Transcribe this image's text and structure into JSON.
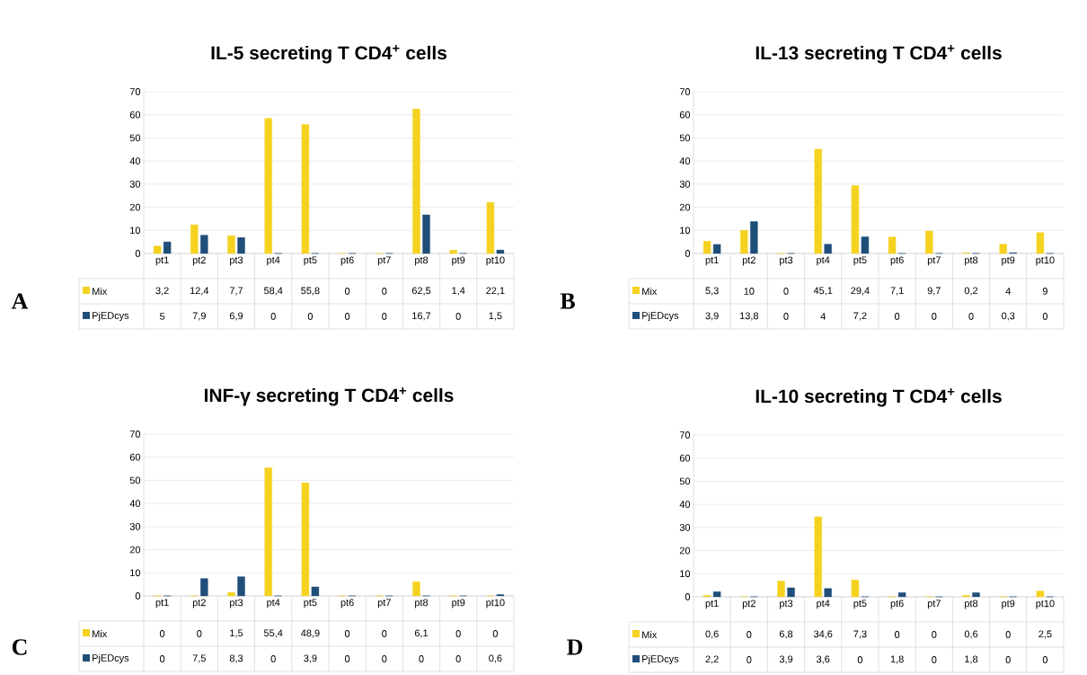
{
  "chart_data": [
    {
      "type": "bar",
      "title": "IL-5 secreting T CD4$^{+}$ cells",
      "annotations": [
        "A"
      ],
      "categories": [
        "pt1",
        "pt2",
        "pt3",
        "pt4",
        "pt5",
        "pt6",
        "pt7",
        "pt8",
        "pt9",
        "pt10"
      ],
      "ylim": [
        0,
        70
      ],
      "yticks": [
        0,
        10,
        20,
        30,
        40,
        50,
        60,
        70
      ],
      "grid": "y",
      "legend": "bottom",
      "series": [
        {
          "name": "Mix",
          "color": "#f5d21f",
          "values": [
            3.2,
            12.4,
            7.7,
            58.4,
            55.8,
            0,
            0,
            62.5,
            1.4,
            22.1
          ],
          "value_labels": [
            "3,2",
            "12,4",
            "7,7",
            "58,4",
            "55,8",
            "0",
            "0",
            "62,5",
            "1,4",
            "22,1"
          ]
        },
        {
          "name": "PjEDcys",
          "color": "#1f4e79",
          "values": [
            5,
            7.9,
            6.9,
            0,
            0,
            0,
            0,
            16.7,
            0,
            1.5
          ],
          "value_labels": [
            "5",
            "7,9",
            "6,9",
            "0",
            "0",
            "0",
            "0",
            "16,7",
            "0",
            "1,5"
          ]
        }
      ]
    },
    {
      "type": "bar",
      "title": "IL-13 secreting T CD4$^{+}$ cells",
      "annotations": [
        "B"
      ],
      "categories": [
        "pt1",
        "pt2",
        "pt3",
        "pt4",
        "pt5",
        "pt6",
        "pt7",
        "pt8",
        "pt9",
        "pt10"
      ],
      "ylim": [
        0,
        70
      ],
      "yticks": [
        0,
        10,
        20,
        30,
        40,
        50,
        60,
        70
      ],
      "grid": "y",
      "legend": "bottom",
      "series": [
        {
          "name": "Mix",
          "color": "#f5d21f",
          "values": [
            5.3,
            10,
            0,
            45.1,
            29.4,
            7.1,
            9.7,
            0.2,
            4,
            9
          ],
          "value_labels": [
            "5,3",
            "10",
            "0",
            "45,1",
            "29,4",
            "7,1",
            "9,7",
            "0,2",
            "4",
            "9"
          ]
        },
        {
          "name": "PjEDcys",
          "color": "#1f4e79",
          "values": [
            3.9,
            13.8,
            0,
            4,
            7.2,
            0,
            0,
            0,
            0.3,
            0
          ],
          "value_labels": [
            "3,9",
            "13,8",
            "0",
            "4",
            "7,2",
            "0",
            "0",
            "0",
            "0,3",
            "0"
          ]
        }
      ]
    },
    {
      "type": "bar",
      "title": "INF-γ secreting T CD4$^{+}$ cells",
      "annotations": [
        "C"
      ],
      "categories": [
        "pt1",
        "pt2",
        "pt3",
        "pt4",
        "pt5",
        "pt6",
        "pt7",
        "pt8",
        "pt9",
        "pt10"
      ],
      "ylim": [
        0,
        70
      ],
      "yticks": [
        0,
        10,
        20,
        30,
        40,
        50,
        60,
        70
      ],
      "grid": "y",
      "legend": "bottom",
      "series": [
        {
          "name": "Mix",
          "color": "#f5d21f",
          "values": [
            0,
            0,
            1.5,
            55.4,
            48.9,
            0,
            0,
            6.1,
            0,
            0
          ],
          "value_labels": [
            "0",
            "0",
            "1,5",
            "55,4",
            "48,9",
            "0",
            "0",
            "6,1",
            "0",
            "0"
          ]
        },
        {
          "name": "PjEDcys",
          "color": "#1f4e79",
          "values": [
            0,
            7.5,
            8.3,
            0,
            3.9,
            0,
            0,
            0,
            0,
            0.6
          ],
          "value_labels": [
            "0",
            "7,5",
            "8,3",
            "0",
            "3,9",
            "0",
            "0",
            "0",
            "0",
            "0,6"
          ]
        }
      ]
    },
    {
      "type": "bar",
      "title": "IL-10 secreting T CD4$^{+}$ cells",
      "annotations": [
        "D"
      ],
      "categories": [
        "pt1",
        "pt2",
        "pt3",
        "pt4",
        "pt5",
        "pt6",
        "pt7",
        "pt8",
        "pt9",
        "pt10"
      ],
      "ylim": [
        0,
        70
      ],
      "yticks": [
        0,
        10,
        20,
        30,
        40,
        50,
        60,
        70
      ],
      "grid": "y",
      "legend": "bottom",
      "series": [
        {
          "name": "Mix",
          "color": "#f5d21f",
          "values": [
            0.6,
            0,
            6.8,
            34.6,
            7.3,
            0,
            0,
            0.6,
            0,
            2.5
          ],
          "value_labels": [
            "0,6",
            "0",
            "6,8",
            "34,6",
            "7,3",
            "0",
            "0",
            "0,6",
            "0",
            "2,5"
          ]
        },
        {
          "name": "PjEDcys",
          "color": "#1f4e79",
          "values": [
            2.2,
            0,
            3.9,
            3.6,
            0,
            1.8,
            0,
            1.8,
            0,
            0
          ],
          "value_labels": [
            "2,2",
            "0",
            "3,9",
            "3,6",
            "0",
            "1,8",
            "0",
            "1,8",
            "0",
            "0"
          ]
        }
      ]
    }
  ]
}
